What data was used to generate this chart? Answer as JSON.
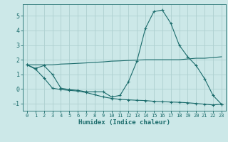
{
  "x": [
    0,
    1,
    2,
    3,
    4,
    5,
    6,
    7,
    8,
    9,
    10,
    11,
    12,
    13,
    14,
    15,
    16,
    17,
    18,
    19,
    20,
    21,
    22,
    23
  ],
  "line1": [
    1.65,
    1.4,
    1.6,
    1.0,
    0.05,
    -0.05,
    -0.1,
    -0.2,
    -0.2,
    -0.2,
    -0.55,
    -0.45,
    0.5,
    1.9,
    4.15,
    5.3,
    5.4,
    4.5,
    3.0,
    2.2,
    1.6,
    0.7,
    -0.45,
    -1.05
  ],
  "line3": [
    1.65,
    1.65,
    1.65,
    1.65,
    1.7,
    1.72,
    1.75,
    1.78,
    1.82,
    1.85,
    1.9,
    1.92,
    1.95,
    1.97,
    2.0,
    2.0,
    2.0,
    2.0,
    2.0,
    2.05,
    2.1,
    2.1,
    2.15,
    2.2
  ],
  "line4": [
    1.65,
    1.35,
    0.75,
    0.05,
    -0.05,
    -0.1,
    -0.15,
    -0.25,
    -0.4,
    -0.55,
    -0.65,
    -0.72,
    -0.75,
    -0.78,
    -0.8,
    -0.85,
    -0.88,
    -0.9,
    -0.92,
    -0.95,
    -1.0,
    -1.05,
    -1.1,
    -1.05
  ],
  "bg_color": "#cce8e8",
  "grid_color": "#aed0d0",
  "line_color": "#1a6b6b",
  "xlabel": "Humidex (Indice chaleur)",
  "ylim": [
    -1.5,
    5.8
  ],
  "xlim": [
    -0.5,
    23.5
  ],
  "yticks": [
    -1,
    0,
    1,
    2,
    3,
    4,
    5
  ],
  "xticks": [
    0,
    1,
    2,
    3,
    4,
    5,
    6,
    7,
    8,
    9,
    10,
    11,
    12,
    13,
    14,
    15,
    16,
    17,
    18,
    19,
    20,
    21,
    22,
    23
  ]
}
